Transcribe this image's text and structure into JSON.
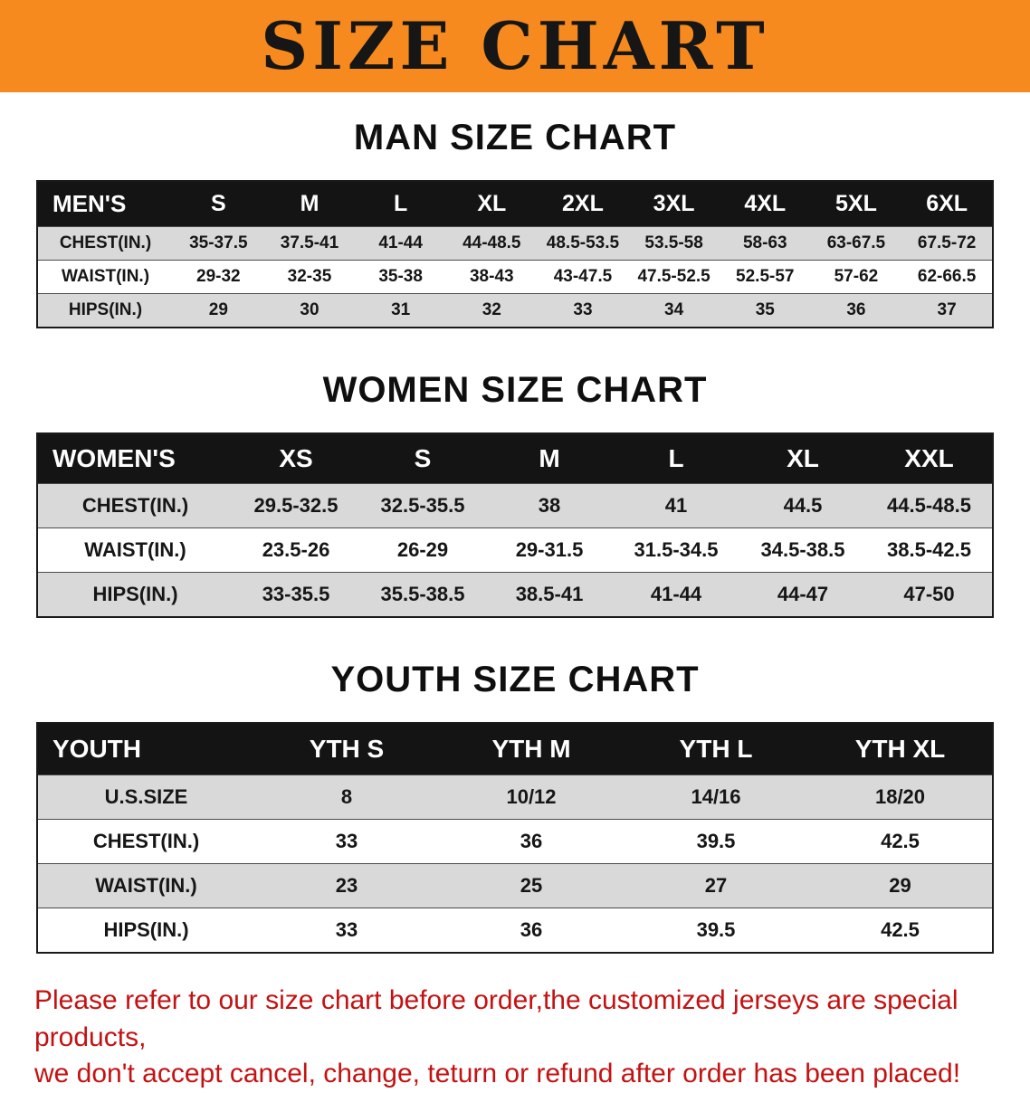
{
  "banner": {
    "title": "SIZE CHART",
    "bg_color": "#f68a1e",
    "text_color": "#161616"
  },
  "colors": {
    "table_header_bg": "#141414",
    "table_header_text": "#ffffff",
    "row_stripe": "#d9d9d9",
    "disclaimer_text": "#c41212"
  },
  "sections": {
    "men": {
      "heading": "MAN SIZE CHART",
      "table": {
        "header": [
          "MEN'S",
          "S",
          "M",
          "L",
          "XL",
          "2XL",
          "3XL",
          "4XL",
          "5XL",
          "6XL"
        ],
        "rows": [
          [
            "CHEST(IN.)",
            "35-37.5",
            "37.5-41",
            "41-44",
            "44-48.5",
            "48.5-53.5",
            "53.5-58",
            "58-63",
            "63-67.5",
            "67.5-72"
          ],
          [
            "WAIST(IN.)",
            "29-32",
            "32-35",
            "35-38",
            "38-43",
            "43-47.5",
            "47.5-52.5",
            "52.5-57",
            "57-62",
            "62-66.5"
          ],
          [
            "HIPS(IN.)",
            "29",
            "30",
            "31",
            "32",
            "33",
            "34",
            "35",
            "36",
            "37"
          ]
        ]
      }
    },
    "women": {
      "heading": "WOMEN SIZE CHART",
      "table": {
        "header": [
          "WOMEN'S",
          "XS",
          "S",
          "M",
          "L",
          "XL",
          "XXL"
        ],
        "rows": [
          [
            "CHEST(IN.)",
            "29.5-32.5",
            "32.5-35.5",
            "38",
            "41",
            "44.5",
            "44.5-48.5"
          ],
          [
            "WAIST(IN.)",
            "23.5-26",
            "26-29",
            "29-31.5",
            "31.5-34.5",
            "34.5-38.5",
            "38.5-42.5"
          ],
          [
            "HIPS(IN.)",
            "33-35.5",
            "35.5-38.5",
            "38.5-41",
            "41-44",
            "44-47",
            "47-50"
          ]
        ]
      }
    },
    "youth": {
      "heading": "YOUTH SIZE CHART",
      "table": {
        "header": [
          "YOUTH",
          "YTH S",
          "YTH M",
          "YTH L",
          "YTH XL"
        ],
        "rows": [
          [
            "U.S.SIZE",
            "8",
            "10/12",
            "14/16",
            "18/20"
          ],
          [
            "CHEST(IN.)",
            "33",
            "36",
            "39.5",
            "42.5"
          ],
          [
            "WAIST(IN.)",
            "23",
            "25",
            "27",
            "29"
          ],
          [
            "HIPS(IN.)",
            "33",
            "36",
            "39.5",
            "42.5"
          ]
        ]
      }
    }
  },
  "disclaimer": {
    "line1": "Please refer to our size chart before order,the customized jerseys are special products,",
    "line2": "we don't accept cancel, change, teturn or refund after order has been placed!"
  }
}
